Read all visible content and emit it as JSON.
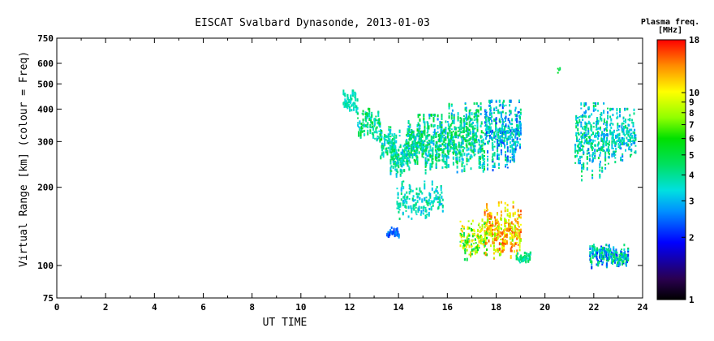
{
  "chart_data": {
    "type": "scatter",
    "title": "EISCAT Svalbard Dynasonde, 2013-01-03",
    "xlabel": "UT TIME",
    "ylabel": "Virtual Range [km] (colour = Freq)",
    "xlim": [
      0,
      24
    ],
    "ylim": [
      75,
      750
    ],
    "yscale": "log",
    "x_ticks": [
      "0",
      "2",
      "4",
      "6",
      "8",
      "10",
      "12",
      "14",
      "16",
      "18",
      "20",
      "22",
      "24"
    ],
    "y_ticks": [
      "75",
      "100",
      "200",
      "300",
      "400",
      "500",
      "600",
      "750"
    ],
    "y_tick_values": [
      75,
      100,
      200,
      300,
      400,
      500,
      600,
      750
    ],
    "colorbar": {
      "title_line1": "Plasma freq.",
      "title_line2": "[MHz]",
      "scale": "log",
      "range": [
        1,
        18
      ],
      "ticks": [
        "1",
        "2",
        "3",
        "4",
        "5",
        "6",
        "7",
        "8",
        "9",
        "10",
        "18"
      ],
      "tick_values": [
        1,
        2,
        3,
        4,
        5,
        6,
        7,
        8,
        9,
        10,
        18
      ]
    },
    "series": [
      {
        "ut_start": 11.7,
        "ut_end": 12.3,
        "range_min": 380,
        "range_max": 470,
        "freq_min": 3.2,
        "freq_max": 4.2,
        "density": 24
      },
      {
        "ut_start": 12.3,
        "ut_end": 13.3,
        "range_min": 300,
        "range_max": 400,
        "freq_min": 3.0,
        "freq_max": 5.5,
        "density": 22
      },
      {
        "ut_start": 13.2,
        "ut_end": 13.9,
        "range_min": 240,
        "range_max": 340,
        "freq_min": 3.0,
        "freq_max": 5.0,
        "density": 20
      },
      {
        "ut_start": 13.6,
        "ut_end": 14.4,
        "range_min": 215,
        "range_max": 330,
        "freq_min": 2.8,
        "freq_max": 5.0,
        "density": 34
      },
      {
        "ut_start": 14.3,
        "ut_end": 16.0,
        "range_min": 225,
        "range_max": 380,
        "freq_min": 2.6,
        "freq_max": 5.5,
        "density": 60
      },
      {
        "ut_start": 16.0,
        "ut_end": 17.5,
        "range_min": 225,
        "range_max": 420,
        "freq_min": 2.7,
        "freq_max": 5.5,
        "density": 55
      },
      {
        "ut_start": 17.5,
        "ut_end": 19.0,
        "range_min": 230,
        "range_max": 430,
        "freq_min": 2.1,
        "freq_max": 4.5,
        "density": 55
      },
      {
        "ut_start": 13.5,
        "ut_end": 14.0,
        "range_min": 128,
        "range_max": 140,
        "freq_min": 2.0,
        "freq_max": 2.8,
        "density": 10
      },
      {
        "ut_start": 13.9,
        "ut_end": 15.8,
        "range_min": 150,
        "range_max": 210,
        "freq_min": 2.8,
        "freq_max": 4.5,
        "density": 12
      },
      {
        "ut_start": 16.5,
        "ut_end": 17.6,
        "range_min": 105,
        "range_max": 150,
        "freq_min": 4.0,
        "freq_max": 12.0,
        "density": 24
      },
      {
        "ut_start": 17.5,
        "ut_end": 19.0,
        "range_min": 105,
        "range_max": 175,
        "freq_min": 7.0,
        "freq_max": 16.0,
        "density": 40
      },
      {
        "ut_start": 18.8,
        "ut_end": 19.4,
        "range_min": 102,
        "range_max": 112,
        "freq_min": 3.5,
        "freq_max": 5.0,
        "density": 10
      },
      {
        "ut_start": 20.5,
        "ut_end": 20.6,
        "range_min": 550,
        "range_max": 600,
        "freq_min": 4.5,
        "freq_max": 5.5,
        "density": 4
      },
      {
        "ut_start": 21.2,
        "ut_end": 22.6,
        "range_min": 210,
        "range_max": 420,
        "freq_min": 2.5,
        "freq_max": 5.0,
        "density": 45
      },
      {
        "ut_start": 22.6,
        "ut_end": 23.7,
        "range_min": 240,
        "range_max": 400,
        "freq_min": 2.5,
        "freq_max": 4.5,
        "density": 35
      },
      {
        "ut_start": 21.8,
        "ut_end": 23.4,
        "range_min": 98,
        "range_max": 120,
        "freq_min": 2.0,
        "freq_max": 5.0,
        "density": 30
      }
    ]
  }
}
